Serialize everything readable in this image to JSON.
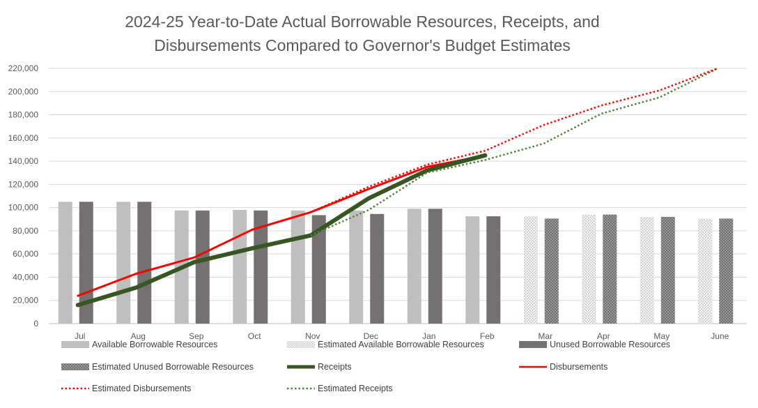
{
  "chart_data": {
    "type": "bar",
    "title_lines": [
      "2024-25 Year-to-Date Actual Borrowable Resources, Receipts, and",
      "Disbursements Compared to Governor's Budget Estimates"
    ],
    "categories": [
      "Jul",
      "Aug",
      "Sep",
      "Oct",
      "Nov",
      "Dec",
      "Jan",
      "Feb",
      "Mar",
      "Apr",
      "May",
      "June"
    ],
    "ylim": [
      0,
      220000
    ],
    "yticks": [
      "0",
      "20,000",
      "40,000",
      "60,000",
      "80,000",
      "100,000",
      "120,000",
      "140,000",
      "160,000",
      "180,000",
      "200,000",
      "220,000"
    ],
    "grid": true,
    "legend_position": "bottom",
    "series": [
      {
        "name": "Available Borrowable Resources",
        "kind": "bar",
        "slot": 0,
        "color": "#bfbfbf",
        "values": [
          105000,
          105000,
          97500,
          98000,
          97500,
          97500,
          99000,
          92500,
          null,
          null,
          null,
          null
        ]
      },
      {
        "name": "Estimated Available Borrowable Resources",
        "kind": "bar",
        "slot": 0,
        "color": "#e0e0e0",
        "pattern": "dots",
        "values": [
          null,
          null,
          null,
          null,
          null,
          null,
          null,
          null,
          92500,
          94000,
          92000,
          90500
        ]
      },
      {
        "name": "Unused Borrowable Resources",
        "kind": "bar",
        "slot": 1,
        "color": "#767171",
        "values": [
          105000,
          105000,
          97500,
          97500,
          93500,
          94500,
          99000,
          92500,
          null,
          null,
          null,
          null
        ]
      },
      {
        "name": "Estimated Unused Borrowable Resources",
        "kind": "bar",
        "slot": 1,
        "color": "#7a7a7a",
        "pattern": "grid",
        "values": [
          null,
          null,
          null,
          null,
          null,
          null,
          null,
          null,
          90500,
          94000,
          92000,
          90500
        ]
      },
      {
        "name": "Receipts",
        "kind": "line",
        "color": "#375623",
        "values": [
          16000,
          31000,
          53000,
          65000,
          76000,
          108000,
          132000,
          145000,
          null,
          null,
          null,
          null
        ]
      },
      {
        "name": "Disbursements",
        "kind": "line",
        "color": "#ff0000",
        "values": [
          24000,
          43000,
          57000,
          81000,
          96000,
          116000,
          135000,
          145000,
          null,
          null,
          null,
          null
        ]
      },
      {
        "name": "Estimated Disbursements",
        "kind": "line",
        "dotted": true,
        "color": "#ff0000",
        "values": [
          null,
          null,
          null,
          null,
          96000,
          118000,
          137000,
          149000,
          171000,
          188000,
          201000,
          221000
        ]
      },
      {
        "name": "Estimated Receipts",
        "kind": "line",
        "dotted": true,
        "color": "#548235",
        "values": [
          null,
          null,
          null,
          null,
          76000,
          98000,
          130000,
          141000,
          155000,
          181000,
          195000,
          221000
        ]
      }
    ]
  }
}
